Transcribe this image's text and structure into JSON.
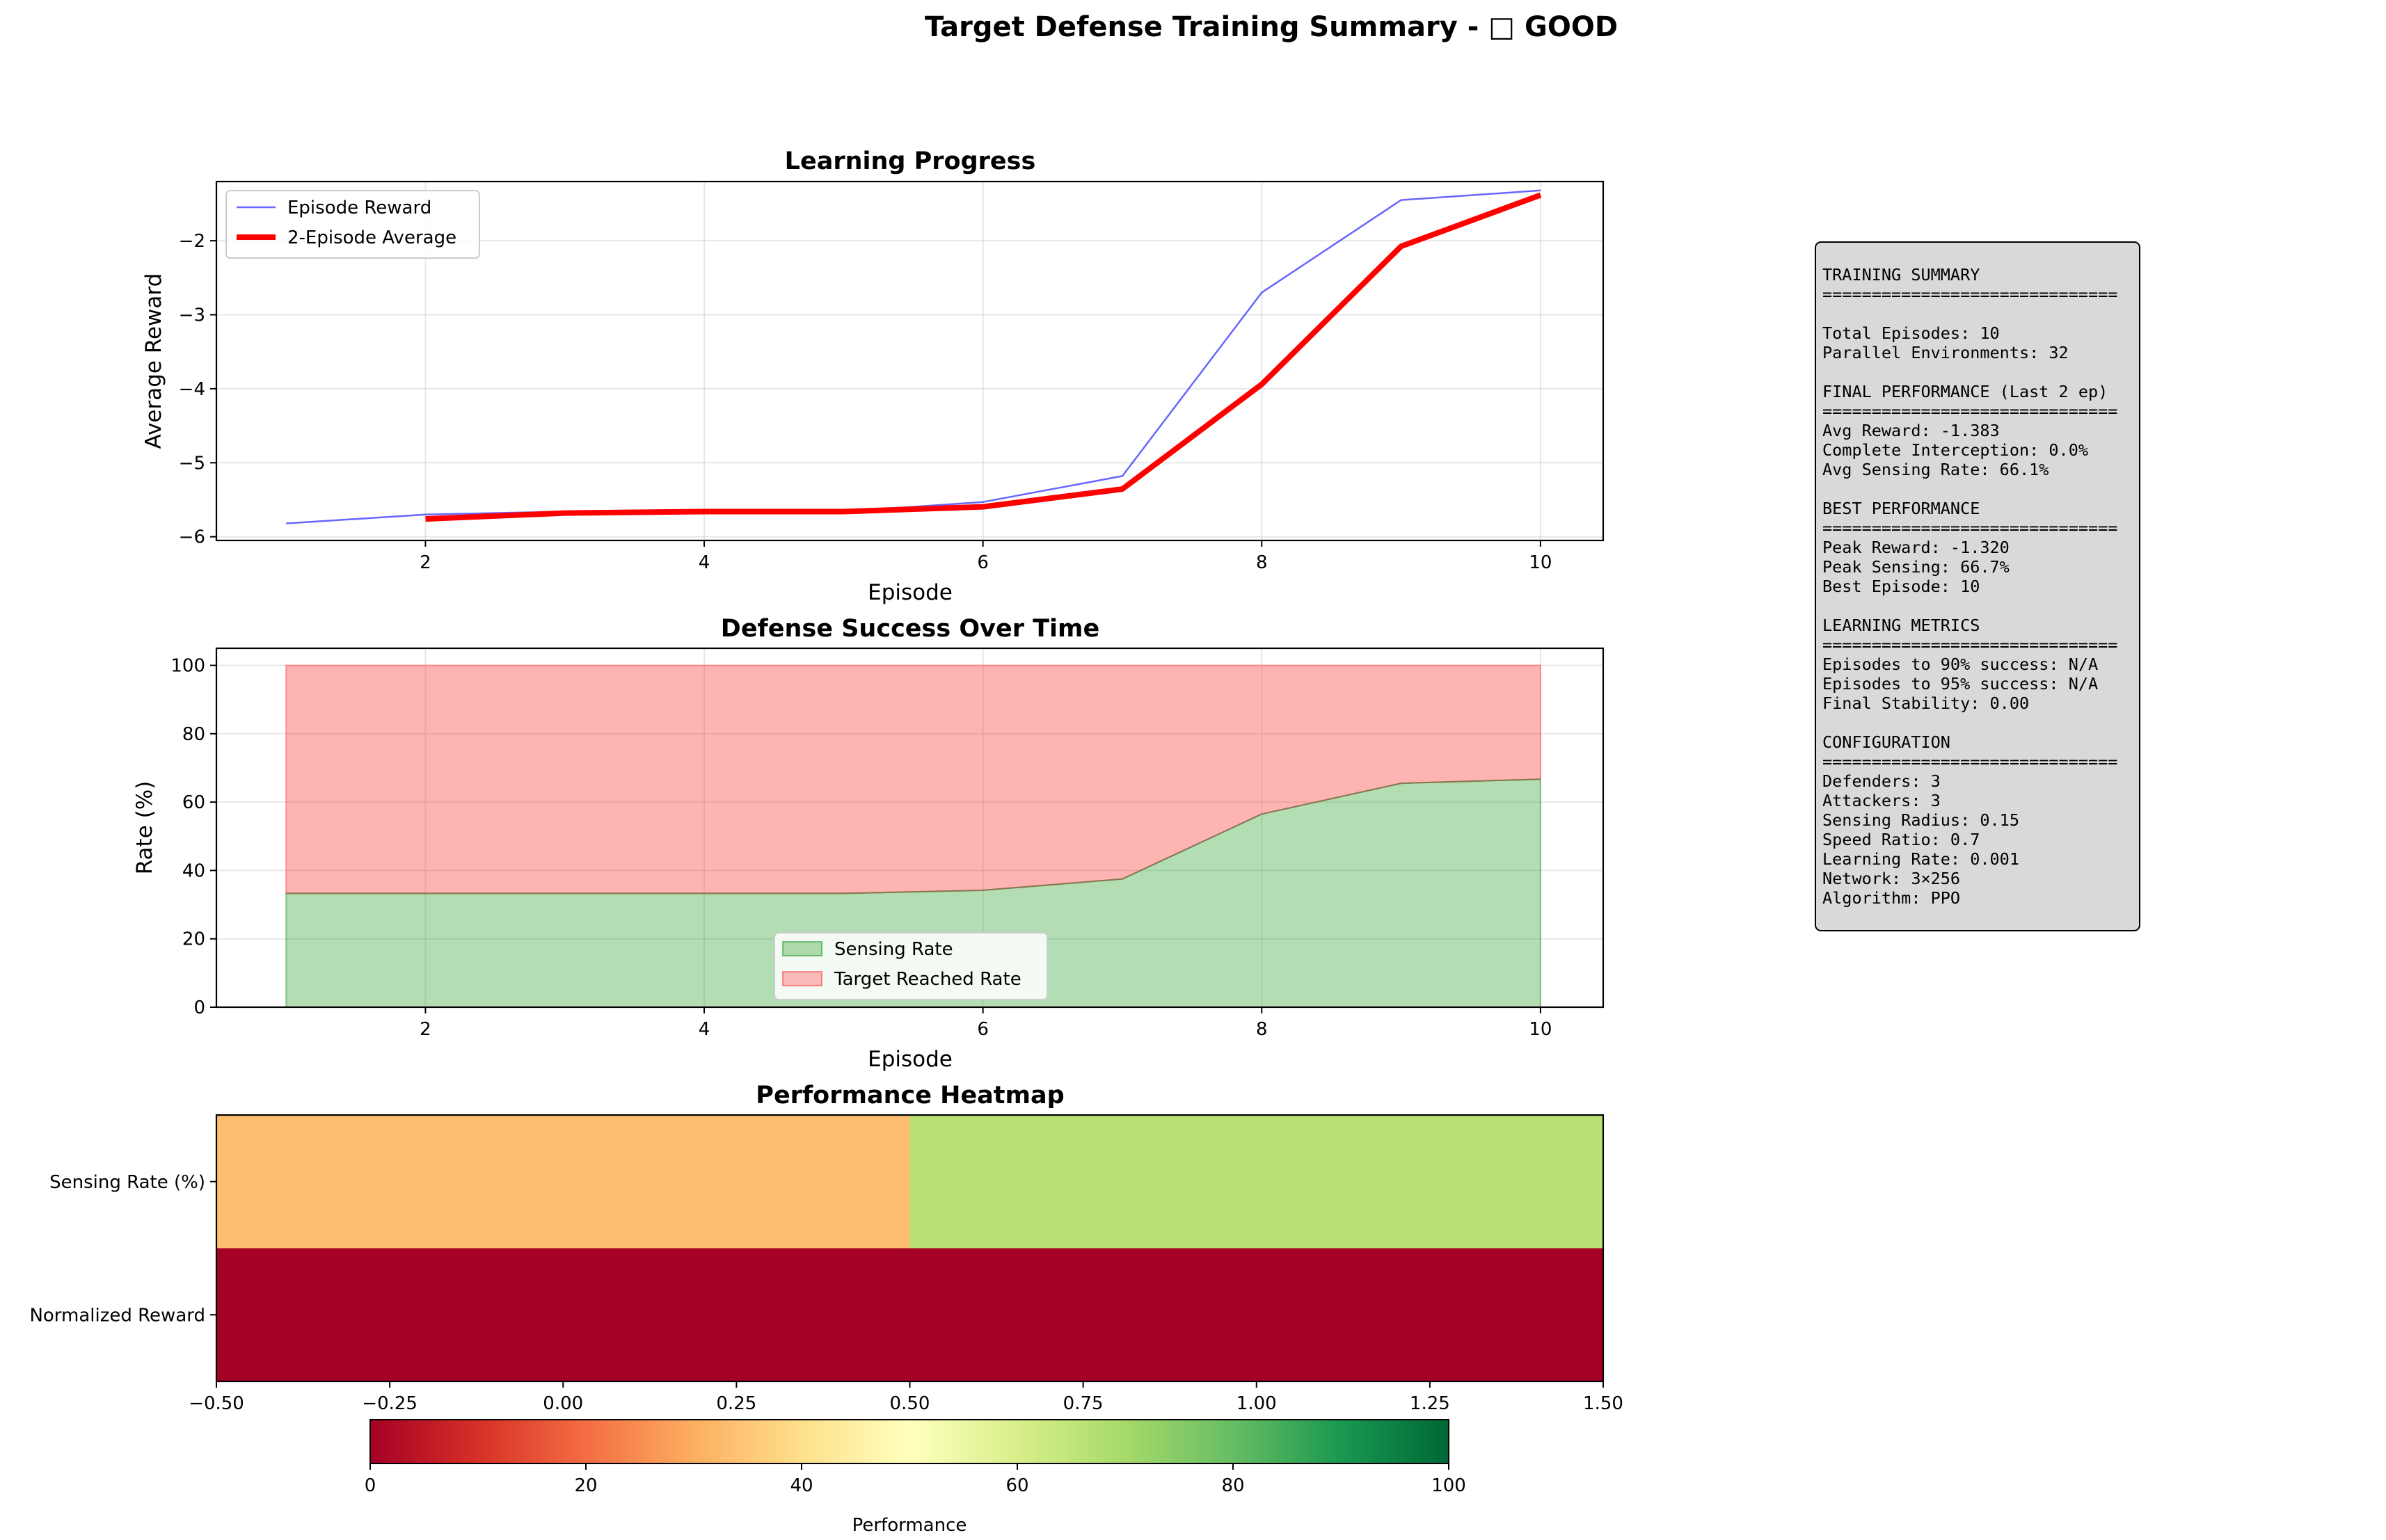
{
  "figure": {
    "title": "Target Defense Training Summary - □ GOOD"
  },
  "chart_data": [
    {
      "type": "line",
      "title": "Learning Progress",
      "xlabel": "Episode",
      "ylabel": "Average Reward",
      "xlim": [
        0.5,
        10.45
      ],
      "ylim": [
        -6.05,
        -1.2
      ],
      "xticks": [
        2,
        4,
        6,
        8,
        10
      ],
      "yticks": [
        -6,
        -5,
        -4,
        -3,
        -2
      ],
      "grid": true,
      "legend": "upper-left",
      "series": [
        {
          "name": "Episode Reward",
          "color": "#0000ff",
          "x": [
            1,
            2,
            3,
            4,
            5,
            6,
            7,
            8,
            9,
            10
          ],
          "y": [
            -5.82,
            -5.7,
            -5.66,
            -5.66,
            -5.66,
            -5.53,
            -5.18,
            -2.7,
            -1.45,
            -1.32
          ]
        },
        {
          "name": "2-Episode Average",
          "color": "#ff0000",
          "x": [
            2,
            3,
            4,
            5,
            6,
            7,
            8,
            9,
            10
          ],
          "y": [
            -5.76,
            -5.68,
            -5.66,
            -5.66,
            -5.595,
            -5.355,
            -3.94,
            -2.075,
            -1.383
          ]
        }
      ]
    },
    {
      "type": "area",
      "title": "Defense Success Over Time",
      "xlabel": "Episode",
      "ylabel": "Rate (%)",
      "xlim": [
        0.5,
        10.45
      ],
      "ylim": [
        0,
        105
      ],
      "xticks": [
        2,
        4,
        6,
        8,
        10
      ],
      "yticks": [
        0,
        20,
        40,
        60,
        80,
        100
      ],
      "grid": true,
      "legend": "lower-center",
      "x": [
        1,
        2,
        3,
        4,
        5,
        6,
        7,
        8,
        9,
        10
      ],
      "series": [
        {
          "name": "Sensing Rate",
          "color": "#2ca02c",
          "values": [
            33.3,
            33.3,
            33.3,
            33.3,
            33.3,
            34.2,
            37.5,
            56.5,
            65.5,
            66.7
          ]
        },
        {
          "name": "Target Reached Rate",
          "color": "#ff4444",
          "values": [
            100,
            100,
            100,
            100,
            100,
            100,
            100,
            100,
            100,
            100
          ]
        }
      ]
    },
    {
      "type": "heatmap",
      "title": "Performance Heatmap",
      "rows": [
        "Sensing Rate (%)",
        "Normalized Reward"
      ],
      "xlim": [
        -0.5,
        1.5
      ],
      "xticks": [
        "−0.50",
        "−0.25",
        "0.00",
        "0.25",
        "0.50",
        "0.75",
        "1.00",
        "1.25",
        "1.50"
      ],
      "values": [
        [
          33.3,
          66.7
        ],
        [
          0,
          0
        ]
      ],
      "colormap": "RdYlGn",
      "vmin": 0,
      "vmax": 100,
      "colorbar": {
        "label": "Performance",
        "ticks": [
          "0",
          "20",
          "40",
          "60",
          "80",
          "100"
        ]
      }
    }
  ],
  "summary": {
    "text": "TRAINING SUMMARY\n==============================\n\nTotal Episodes: 10\nParallel Environments: 32\n\nFINAL PERFORMANCE (Last 2 ep)\n==============================\nAvg Reward: -1.383\nComplete Interception: 0.0%\nAvg Sensing Rate: 66.1%\n\nBEST PERFORMANCE\n==============================\nPeak Reward: -1.320\nPeak Sensing: 66.7%\nBest Episode: 10\n\nLEARNING METRICS\n==============================\nEpisodes to 90% success: N/A\nEpisodes to 95% success: N/A\nFinal Stability: 0.00\n\nCONFIGURATION\n==============================\nDefenders: 3\nAttackers: 3\nSensing Radius: 0.15\nSpeed Ratio: 0.7\nLearning Rate: 0.001\nNetwork: 3×256\nAlgorithm: PPO"
  }
}
